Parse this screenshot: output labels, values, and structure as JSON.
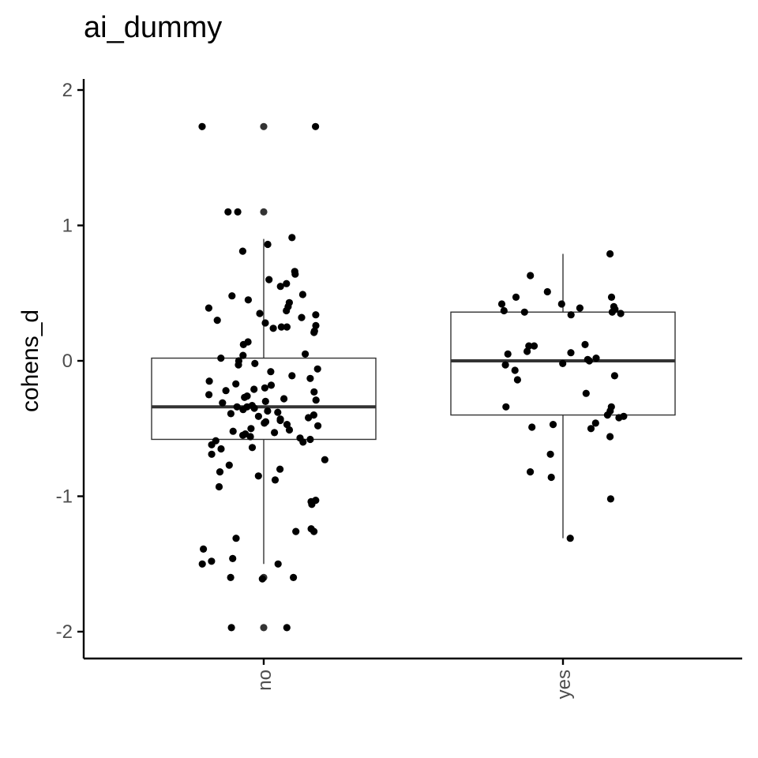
{
  "chart_data": {
    "type": "box",
    "title": "ai_dummy",
    "xlabel": "",
    "ylabel": "cohens_d",
    "categories": [
      "no",
      "yes"
    ],
    "ylim": [
      -2.2,
      2.2
    ],
    "yticks": [
      -2,
      -1,
      0,
      1,
      2
    ],
    "ytick_labels": [
      "-2",
      "-1",
      "0",
      "1",
      "2"
    ],
    "grid": false,
    "boxes": [
      {
        "category": "no",
        "whisker_low": -1.5,
        "q1": -0.58,
        "median": -0.34,
        "q3": 0.02,
        "whisker_high": 0.9,
        "outliers": [
          1.73,
          1.1,
          -1.6,
          -1.97
        ]
      },
      {
        "category": "yes",
        "whisker_low": -1.31,
        "q1": -0.4,
        "median": 0.0,
        "q3": 0.36,
        "whisker_high": 0.79,
        "outliers": []
      }
    ],
    "points": [
      {
        "category": "no",
        "values": [
          1.73,
          1.73,
          1.1,
          1.1,
          0.91,
          0.86,
          0.81,
          0.66,
          0.64,
          0.6,
          0.57,
          0.55,
          0.49,
          0.48,
          0.45,
          0.43,
          0.4,
          0.39,
          0.37,
          0.35,
          0.34,
          0.32,
          0.3,
          0.28,
          0.26,
          0.25,
          0.25,
          0.24,
          0.22,
          0.21,
          0.14,
          0.12,
          0.05,
          0.04,
          0.02,
          0.0,
          -0.02,
          -0.03,
          -0.06,
          -0.08,
          -0.11,
          -0.13,
          -0.15,
          -0.17,
          -0.18,
          -0.2,
          -0.21,
          -0.22,
          -0.23,
          -0.25,
          -0.26,
          -0.27,
          -0.28,
          -0.29,
          -0.3,
          -0.31,
          -0.33,
          -0.34,
          -0.34,
          -0.35,
          -0.36,
          -0.37,
          -0.38,
          -0.39,
          -0.4,
          -0.41,
          -0.42,
          -0.43,
          -0.44,
          -0.45,
          -0.46,
          -0.47,
          -0.48,
          -0.5,
          -0.51,
          -0.52,
          -0.53,
          -0.54,
          -0.55,
          -0.56,
          -0.57,
          -0.58,
          -0.59,
          -0.6,
          -0.62,
          -0.64,
          -0.65,
          -0.69,
          -0.73,
          -0.77,
          -0.8,
          -0.82,
          -0.85,
          -0.88,
          -0.93,
          -1.03,
          -1.04,
          -1.06,
          -1.24,
          -1.26,
          -1.26,
          -1.31,
          -1.39,
          -1.46,
          -1.48,
          -1.5,
          -1.5,
          -1.6,
          -1.6,
          -1.61,
          -1.97,
          -1.97
        ]
      },
      {
        "category": "yes",
        "values": [
          0.79,
          0.63,
          0.51,
          0.47,
          0.47,
          0.42,
          0.42,
          0.4,
          0.39,
          0.38,
          0.37,
          0.36,
          0.36,
          0.35,
          0.34,
          0.12,
          0.11,
          0.11,
          0.07,
          0.06,
          0.05,
          0.02,
          0.01,
          0.0,
          -0.02,
          -0.03,
          -0.07,
          -0.11,
          -0.14,
          -0.24,
          -0.34,
          -0.34,
          -0.37,
          -0.4,
          -0.41,
          -0.42,
          -0.46,
          -0.47,
          -0.49,
          -0.5,
          -0.56,
          -0.69,
          -0.82,
          -0.86,
          -1.02,
          -1.31
        ]
      }
    ]
  }
}
